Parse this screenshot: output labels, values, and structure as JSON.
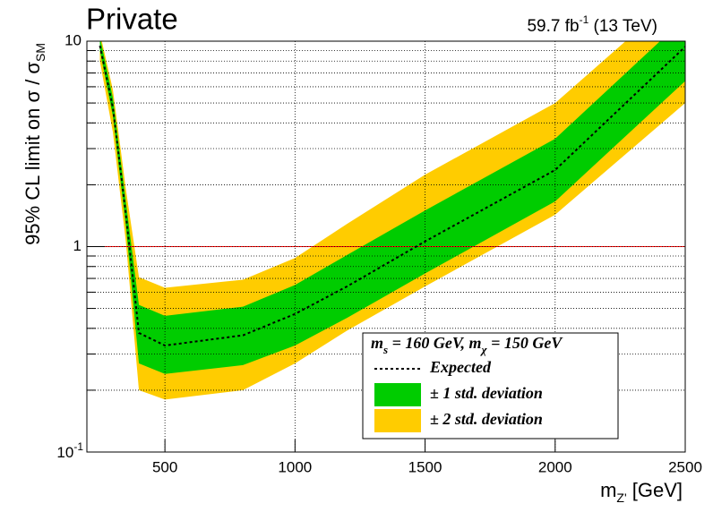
{
  "chart_data": {
    "type": "band",
    "title": "Private",
    "lumi_parts": [
      "59.7 fb",
      "-1",
      " (13 TeV)"
    ],
    "xlabel_parts": [
      "m",
      "Z'",
      " [GeV]"
    ],
    "ylabel_parts": [
      "95% CL limit on  σ / σ",
      "SM"
    ],
    "legend_title_parts": [
      "m",
      "s",
      " = 160 GeV, m",
      "χ",
      " = 150 GeV"
    ],
    "x": [
      250,
      300,
      350,
      400,
      500,
      800,
      1000,
      1200,
      1500,
      2000,
      2500
    ],
    "series": [
      {
        "name": "± 2 std. deviation",
        "color": "#ffcc00",
        "lower": [
          8.0,
          3.6,
          1.05,
          0.2,
          0.18,
          0.2,
          0.27,
          0.39,
          0.64,
          1.43,
          5.0
        ],
        "upper": [
          11,
          5.8,
          1.9,
          0.71,
          0.63,
          0.69,
          0.88,
          1.29,
          2.24,
          5.0,
          18
        ]
      },
      {
        "name": "± 1 std. deviation",
        "color": "#00cc00",
        "lower": [
          9.0,
          4.3,
          1.25,
          0.27,
          0.24,
          0.265,
          0.33,
          0.45,
          0.74,
          1.66,
          6.4
        ],
        "upper": [
          10.5,
          5.3,
          1.65,
          0.52,
          0.46,
          0.51,
          0.65,
          0.91,
          1.5,
          3.35,
          13
        ]
      },
      {
        "name": "Expected",
        "color": "#000000",
        "values": [
          9.5,
          4.75,
          1.43,
          0.38,
          0.33,
          0.37,
          0.47,
          0.64,
          1.06,
          2.36,
          9.4
        ]
      }
    ],
    "reference_line": {
      "value": 1,
      "color": "#ff0000"
    },
    "xlim": [
      200,
      2500
    ],
    "xticks": [
      500,
      1000,
      1500,
      2000,
      2500
    ],
    "ylim": [
      0.1,
      10
    ],
    "log_y": true,
    "yticks": [
      {
        "value": 0.1,
        "label": "10",
        "exponent": "-1"
      },
      1,
      10
    ],
    "yminor": [
      0.2,
      0.3,
      0.4,
      0.5,
      0.6,
      0.7,
      0.8,
      0.9,
      2,
      3,
      4,
      5,
      6,
      7,
      8,
      9
    ],
    "grid": true
  }
}
